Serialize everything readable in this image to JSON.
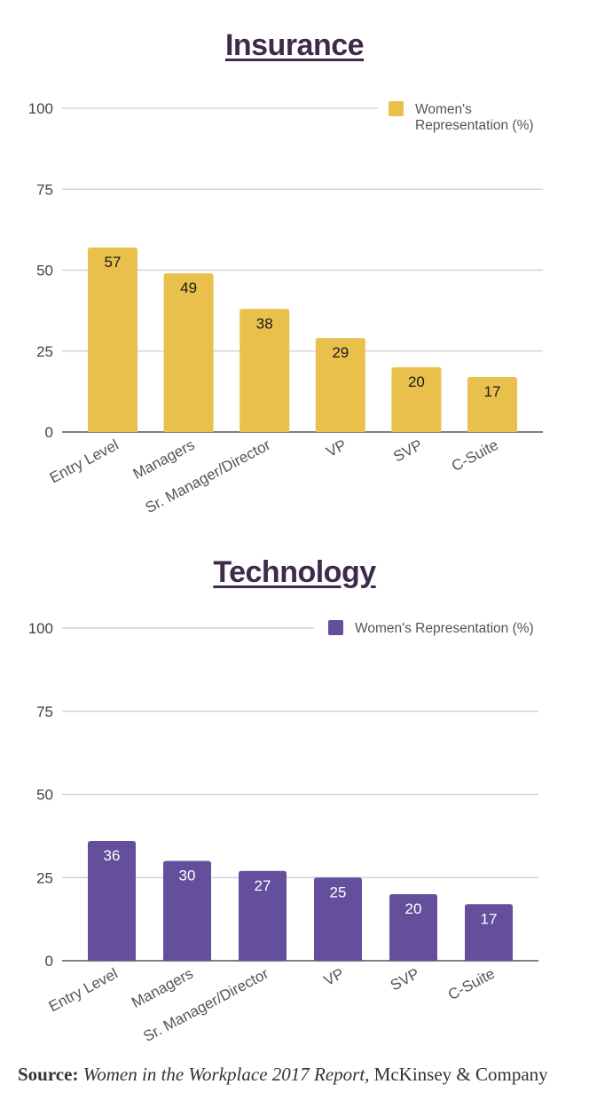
{
  "source": {
    "label": "Source:",
    "report": "Women in the Workplace 2017 Report,",
    "publisher": "McKinsey & Company"
  },
  "chart_data": [
    {
      "type": "bar",
      "title": "Insurance",
      "categories": [
        "Entry Level",
        "Managers",
        "Sr. Manager/Director",
        "VP",
        "SVP",
        "C-Suite"
      ],
      "series": [
        {
          "name": "Women's Representation (%)",
          "values": [
            57,
            49,
            38,
            29,
            20,
            17
          ],
          "color": "#e8c04b"
        }
      ],
      "yticks": [
        0,
        25,
        50,
        75,
        100
      ],
      "ylim": [
        0,
        100
      ],
      "grid": true,
      "legend_position": "top-right",
      "legend_lines": [
        "Women's",
        "Representation (%)"
      ]
    },
    {
      "type": "bar",
      "title": "Technology",
      "categories": [
        "Entry Level",
        "Managers",
        "Sr. Manager/Director",
        "VP",
        "SVP",
        "C-Suite"
      ],
      "series": [
        {
          "name": "Women's Representation (%)",
          "values": [
            36,
            30,
            27,
            25,
            20,
            17
          ],
          "color": "#634f9c"
        }
      ],
      "yticks": [
        0,
        25,
        50,
        75,
        100
      ],
      "ylim": [
        0,
        100
      ],
      "grid": true,
      "legend_position": "top-right",
      "legend_lines": [
        "Women's Representation (%)"
      ]
    }
  ]
}
